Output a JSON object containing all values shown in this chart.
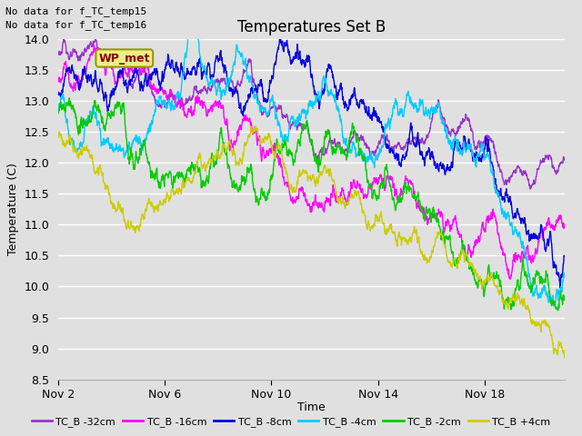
{
  "title": "Temperatures Set B",
  "ylabel": "Temperature (C)",
  "xlabel": "Time",
  "annotations": [
    "No data for f_TC_temp15",
    "No data for f_TC_temp16"
  ],
  "wp_met_label": "WP_met",
  "ylim": [
    8.5,
    14.0
  ],
  "yticks": [
    8.5,
    9.0,
    9.5,
    10.0,
    10.5,
    11.0,
    11.5,
    12.0,
    12.5,
    13.0,
    13.5,
    14.0
  ],
  "xtick_labels": [
    "Nov 2",
    "Nov 6",
    "Nov 10",
    "Nov 14",
    "Nov 18"
  ],
  "xtick_positions": [
    0,
    4,
    8,
    12,
    16
  ],
  "xlim": [
    0,
    19
  ],
  "series_names": [
    "TC_B -32cm",
    "TC_B -16cm",
    "TC_B -8cm",
    "TC_B -4cm",
    "TC_B -2cm",
    "TC_B +4cm"
  ],
  "series_colors": [
    "#9933cc",
    "#ff00ff",
    "#0000dd",
    "#00ccff",
    "#00cc00",
    "#cccc00"
  ],
  "series_lw": [
    1.0,
    1.0,
    1.0,
    1.0,
    1.0,
    1.0
  ],
  "background_color": "#e0e0e0",
  "plot_bg_color": "#e0e0e0",
  "grid_color": "#ffffff",
  "n_points": 2000,
  "x_start": 0,
  "x_end": 19,
  "title_fontsize": 12,
  "axis_fontsize": 9,
  "tick_fontsize": 9,
  "legend_fontsize": 8,
  "legend_ncol": 6,
  "figsize": [
    6.4,
    4.8
  ],
  "dpi": 100
}
